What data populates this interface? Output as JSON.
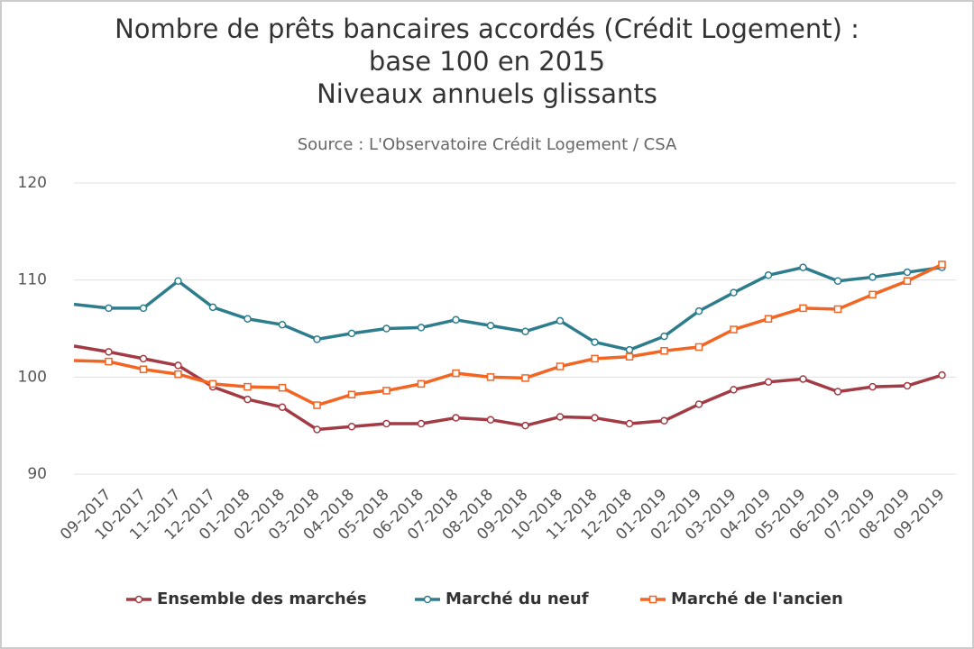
{
  "chart_data": {
    "type": "line",
    "title": "Nombre de prêts bancaires accordés (Crédit Logement) :",
    "title_line2": "base 100 en 2015",
    "title_line3": "Niveaux annuels glissants",
    "subtitle": "Source : L'Observatoire Crédit Logement / CSA",
    "categories": [
      null,
      "09-2017",
      "10-2017",
      "11-2017",
      "12-2017",
      "01-2018",
      "02-2018",
      "03-2018",
      "04-2018",
      "05-2018",
      "06-2018",
      "07-2018",
      "08-2018",
      "09-2018",
      "10-2018",
      "11-2018",
      "12-2018",
      "01-2019",
      "02-2019",
      "03-2019",
      "04-2019",
      "05-2019",
      "06-2019",
      "07-2019",
      "08-2019",
      "09-2019"
    ],
    "series": [
      {
        "name": "Ensemble des marchés",
        "color": "#a33b45",
        "marker": "circle",
        "values": [
          103.2,
          102.6,
          101.9,
          101.2,
          99.0,
          97.7,
          96.9,
          94.6,
          94.9,
          95.2,
          95.2,
          95.8,
          95.6,
          95.0,
          95.9,
          95.8,
          95.2,
          95.5,
          97.2,
          98.7,
          99.5,
          99.8,
          98.5,
          99.0,
          99.1,
          100.2
        ]
      },
      {
        "name": "Marché du neuf",
        "color": "#2e7d8c",
        "marker": "circle",
        "values": [
          107.5,
          107.1,
          107.1,
          109.9,
          107.2,
          106.0,
          105.4,
          103.9,
          104.5,
          105.0,
          105.1,
          105.9,
          105.3,
          104.7,
          105.8,
          103.6,
          102.8,
          104.2,
          106.8,
          108.7,
          110.5,
          111.3,
          109.9,
          110.3,
          110.8,
          111.3
        ]
      },
      {
        "name": "Marché de l'ancien",
        "color": "#f26522",
        "marker": "square",
        "values": [
          101.7,
          101.6,
          100.8,
          100.3,
          99.3,
          99.0,
          98.9,
          97.1,
          98.2,
          98.6,
          99.3,
          100.4,
          100.0,
          99.9,
          101.1,
          101.9,
          102.1,
          102.7,
          103.1,
          104.9,
          106.0,
          107.1,
          107.0,
          108.5,
          109.9,
          111.6
        ]
      }
    ],
    "ylim": [
      90,
      120
    ],
    "yticks": [
      90,
      100,
      110,
      120
    ],
    "grid": true
  }
}
